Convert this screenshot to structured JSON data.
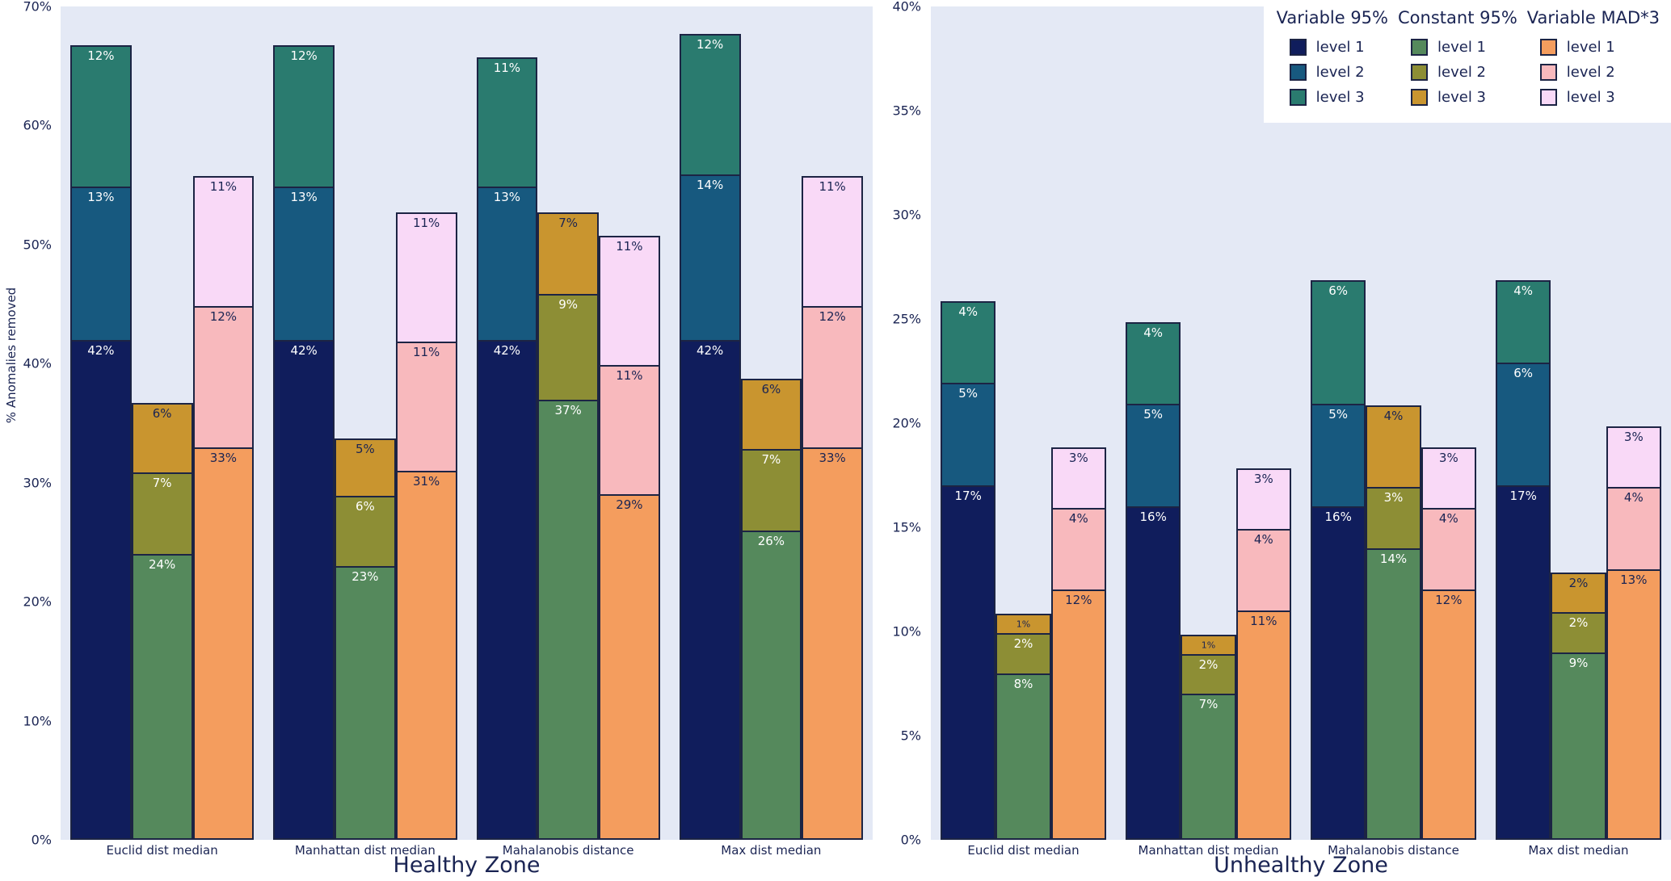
{
  "page": {
    "background": "#ffffff",
    "plot_background": "#e4e9f5",
    "text_color": "#1a2453",
    "bar_border_color": "#1c2444"
  },
  "legend": {
    "columns": [
      {
        "header": "Variable 95%",
        "items": [
          {
            "label": "level 1",
            "color": "#101d5c"
          },
          {
            "label": "level 2",
            "color": "#17597f"
          },
          {
            "label": "level 3",
            "color": "#2a7b6f"
          }
        ]
      },
      {
        "header": "Constant 95%",
        "items": [
          {
            "label": "level 1",
            "color": "#55895c"
          },
          {
            "label": "level 2",
            "color": "#8d8e35"
          },
          {
            "label": "level 3",
            "color": "#c9952f"
          }
        ]
      },
      {
        "header": "Variable MAD*3",
        "items": [
          {
            "label": "level 1",
            "color": "#f49d5e"
          },
          {
            "label": "level 2",
            "color": "#f8b9bd"
          },
          {
            "label": "level 3",
            "color": "#f9d9f7"
          }
        ]
      }
    ]
  },
  "chart_data": [
    {
      "type": "bar",
      "stacked": true,
      "title": "Healthy Zone",
      "ylabel": "% Anomalies removed",
      "ylim": [
        0,
        70
      ],
      "ytick_step": 10,
      "grid": false,
      "legend_position": "top-right",
      "categories": [
        "Euclid dist median",
        "Manhattan dist median",
        "Mahalanobis distance",
        "Max dist median"
      ],
      "series": [
        {
          "name": "Variable 95%",
          "levels": [
            {
              "label": "level 1",
              "color": "#101d5c",
              "label_color": "#ffffff",
              "values": [
                42,
                42,
                42,
                42
              ]
            },
            {
              "label": "level 2",
              "color": "#17597f",
              "label_color": "#ffffff",
              "values": [
                13,
                13,
                13,
                14
              ]
            },
            {
              "label": "level 3",
              "color": "#2a7b6f",
              "label_color": "#ffffff",
              "values": [
                12,
                12,
                11,
                12
              ]
            }
          ]
        },
        {
          "name": "Constant 95%",
          "levels": [
            {
              "label": "level 1",
              "color": "#55895c",
              "label_color": "#ffffff",
              "values": [
                24,
                23,
                37,
                26
              ]
            },
            {
              "label": "level 2",
              "color": "#8d8e35",
              "label_color": "#ffffff",
              "values": [
                7,
                6,
                9,
                7
              ]
            },
            {
              "label": "level 3",
              "color": "#c9952f",
              "label_color": "#1a2453",
              "values": [
                6,
                5,
                7,
                6
              ]
            }
          ]
        },
        {
          "name": "Variable MAD*3",
          "levels": [
            {
              "label": "level 1",
              "color": "#f49d5e",
              "label_color": "#1a2453",
              "values": [
                33,
                31,
                29,
                33
              ]
            },
            {
              "label": "level 2",
              "color": "#f8b9bd",
              "label_color": "#1a2453",
              "values": [
                12,
                11,
                11,
                12
              ]
            },
            {
              "label": "level 3",
              "color": "#f9d9f7",
              "label_color": "#1a2453",
              "values": [
                11,
                11,
                11,
                11
              ]
            }
          ]
        }
      ]
    },
    {
      "type": "bar",
      "stacked": true,
      "title": "Unhealthy Zone",
      "ylabel": "",
      "ylim": [
        0,
        40
      ],
      "ytick_step": 5,
      "grid": false,
      "categories": [
        "Euclid dist median",
        "Manhattan dist median",
        "Mahalanobis distance",
        "Max dist median"
      ],
      "series": [
        {
          "name": "Variable 95%",
          "levels": [
            {
              "label": "level 1",
              "color": "#101d5c",
              "label_color": "#ffffff",
              "values": [
                17,
                16,
                16,
                17
              ]
            },
            {
              "label": "level 2",
              "color": "#17597f",
              "label_color": "#ffffff",
              "values": [
                5,
                5,
                5,
                6
              ]
            },
            {
              "label": "level 3",
              "color": "#2a7b6f",
              "label_color": "#ffffff",
              "values": [
                4,
                4,
                6,
                4
              ]
            }
          ]
        },
        {
          "name": "Constant 95%",
          "levels": [
            {
              "label": "level 1",
              "color": "#55895c",
              "label_color": "#ffffff",
              "values": [
                8,
                7,
                14,
                9
              ]
            },
            {
              "label": "level 2",
              "color": "#8d8e35",
              "label_color": "#ffffff",
              "values": [
                2,
                2,
                3,
                2
              ]
            },
            {
              "label": "level 3",
              "color": "#c9952f",
              "label_color": "#1a2453",
              "values": [
                1,
                1,
                4,
                2
              ]
            }
          ]
        },
        {
          "name": "Variable MAD*3",
          "levels": [
            {
              "label": "level 1",
              "color": "#f49d5e",
              "label_color": "#1a2453",
              "values": [
                12,
                11,
                12,
                13
              ]
            },
            {
              "label": "level 2",
              "color": "#f8b9bd",
              "label_color": "#1a2453",
              "values": [
                4,
                4,
                4,
                4
              ]
            },
            {
              "label": "level 3",
              "color": "#f9d9f7",
              "label_color": "#1a2453",
              "values": [
                3,
                3,
                3,
                3
              ]
            }
          ]
        }
      ]
    }
  ]
}
